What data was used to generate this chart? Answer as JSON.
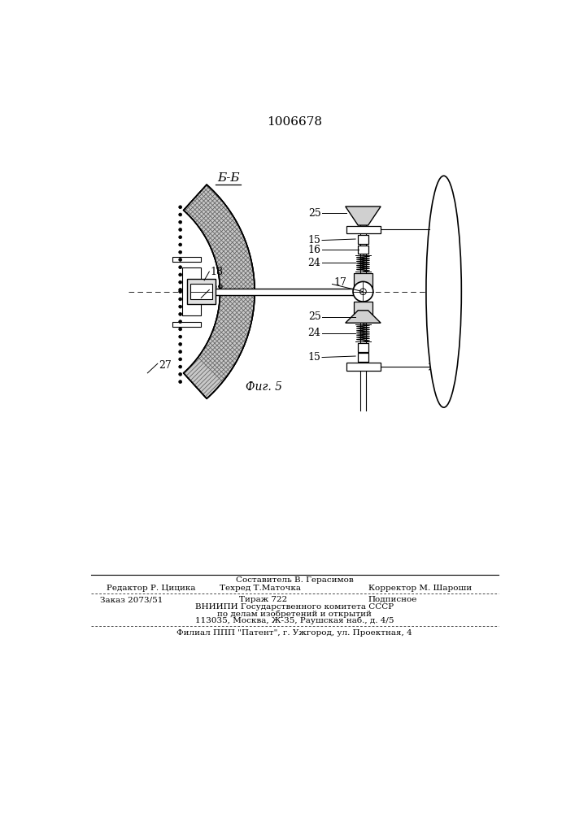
{
  "patent_number": "1006678",
  "figure_label": "Б-Б",
  "figure_number": "Фиг. 5",
  "footer_line1": "Составитель В. Герасимов",
  "footer_line2_left": "Редактор Р. Цицика",
  "footer_line2_mid": "Техред Т.Маточка",
  "footer_line2_right": "Корректор М. Шароши",
  "footer_line3_left": "Заказ 2073/51",
  "footer_line3_mid": "Тираж 722",
  "footer_line3_right": "Подписное",
  "footer_line4": "ВНИИПИ Государственного комитета СССР",
  "footer_line5": "по делам изобретений и открытий",
  "footer_line6": "113035, Москва, Ж-35, Раушская наб., д. 4/5",
  "footer_line7": "Филиал ППП \"Патент\", г. Ужгород, ул. Проектная, 4"
}
